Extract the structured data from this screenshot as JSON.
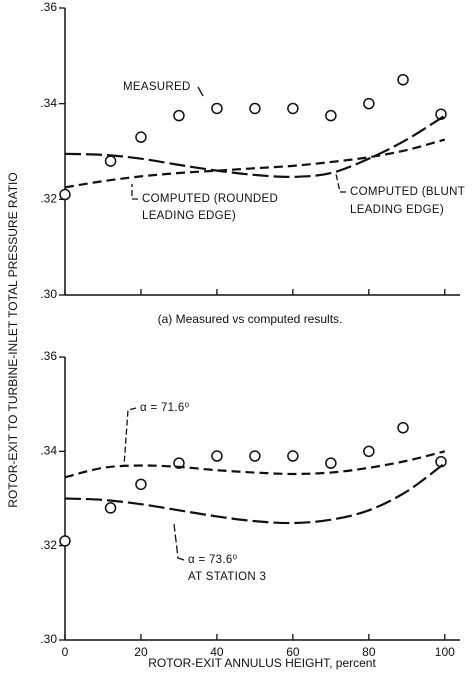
{
  "chart_data": [
    {
      "type": "line",
      "ylabel": "ROTOR-EXIT TO TURBINE-INLET TOTAL PRESSURE RATIO",
      "caption": "(a) Measured vs computed results.",
      "xlim": [
        0,
        104
      ],
      "xticks": [
        0,
        20,
        40,
        60,
        80,
        100
      ],
      "show_xtick_labels": false,
      "ylim": [
        0.3,
        0.36
      ],
      "yticks": [
        {
          "value": 0.3,
          "label": ".30"
        },
        {
          "value": 0.32,
          "label": ".32"
        },
        {
          "value": 0.34,
          "label": ".34"
        },
        {
          "value": 0.36,
          "label": ".36"
        }
      ],
      "annotations": [
        "MEASURED",
        "COMPUTED (ROUNDED",
        "LEADING EDGE)",
        "COMPUTED (BLUNT",
        "LEADING EDGE)"
      ],
      "series": [
        {
          "marker": "circle",
          "color": "#111111",
          "x": [
            0,
            12,
            20,
            30,
            40,
            50,
            60,
            70,
            80,
            89,
            99
          ],
          "values": [
            0.321,
            0.328,
            0.333,
            0.3375,
            0.339,
            0.339,
            0.339,
            0.3375,
            0.34,
            0.345,
            0.3378
          ]
        },
        {
          "dash": "long",
          "color": "#111111",
          "x": [
            0,
            10,
            20,
            30,
            40,
            50,
            60,
            70,
            80,
            90,
            100
          ],
          "values": [
            0.3295,
            0.3293,
            0.3285,
            0.3272,
            0.326,
            0.3251,
            0.3247,
            0.3255,
            0.3285,
            0.3325,
            0.3375
          ]
        },
        {
          "dash": "medium",
          "color": "#111111",
          "x": [
            0,
            10,
            20,
            30,
            40,
            50,
            60,
            70,
            80,
            90,
            100
          ],
          "values": [
            0.3225,
            0.3238,
            0.3248,
            0.3255,
            0.326,
            0.3265,
            0.327,
            0.3278,
            0.3288,
            0.3303,
            0.3325
          ]
        }
      ]
    },
    {
      "type": "line",
      "xlabel": "ROTOR-EXIT ANNULUS HEIGHT, percent",
      "xlim": [
        0,
        104
      ],
      "xticks": [
        0,
        20,
        40,
        60,
        80,
        100
      ],
      "show_xtick_labels": true,
      "ylim": [
        0.3,
        0.36
      ],
      "yticks": [
        {
          "value": 0.3,
          "label": ".30"
        },
        {
          "value": 0.32,
          "label": ".32"
        },
        {
          "value": 0.34,
          "label": ".34"
        },
        {
          "value": 0.36,
          "label": ".36"
        }
      ],
      "annotations": [
        "α = 71.6⁰",
        "α = 73.6⁰",
        "AT STATION 3"
      ],
      "series": [
        {
          "marker": "circle",
          "color": "#111111",
          "x": [
            0,
            12,
            20,
            30,
            40,
            50,
            60,
            70,
            80,
            89,
            99
          ],
          "values": [
            0.321,
            0.328,
            0.333,
            0.3375,
            0.339,
            0.339,
            0.339,
            0.3375,
            0.34,
            0.345,
            0.3378
          ]
        },
        {
          "dash": "medium",
          "color": "#111111",
          "x": [
            0,
            10,
            20,
            30,
            40,
            50,
            60,
            70,
            80,
            90,
            100
          ],
          "values": [
            0.3345,
            0.3365,
            0.337,
            0.3367,
            0.336,
            0.3355,
            0.3352,
            0.3355,
            0.3365,
            0.338,
            0.34
          ]
        },
        {
          "dash": "long",
          "color": "#111111",
          "x": [
            0,
            10,
            20,
            30,
            40,
            50,
            60,
            70,
            80,
            90,
            100
          ],
          "values": [
            0.33,
            0.3297,
            0.3288,
            0.3275,
            0.3262,
            0.3252,
            0.3248,
            0.3255,
            0.3275,
            0.3315,
            0.3375
          ]
        }
      ]
    }
  ]
}
